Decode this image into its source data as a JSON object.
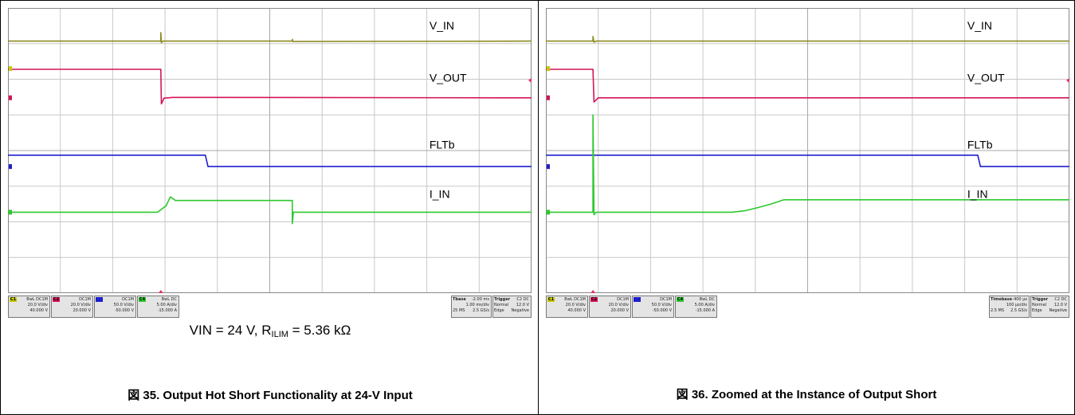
{
  "colors": {
    "v_in": "#8a8a20",
    "v_out": "#d4145a",
    "fltb": "#1f1fcc",
    "i_in": "#2ec82e",
    "grid": "#c8c8c8",
    "ch1": "#c8c800",
    "ch2": "#d4145a",
    "ch3": "#1f1fcc",
    "ch4": "#2ec82e"
  },
  "chart_data": [
    {
      "type": "line",
      "trace_labels": [
        "V_IN",
        "V_OUT",
        "FLTb",
        "I_IN"
      ],
      "channels": [
        {
          "tag": "C1",
          "mode": "BwL DC1M",
          "vdiv": "20.0 V/div",
          "offset": "40.000 V"
        },
        {
          "tag": "C2",
          "mode": "DC1M",
          "vdiv": "20.0 V/div",
          "offset": "20.000 V"
        },
        {
          "tag": "",
          "mode": "DC1M",
          "vdiv": "50.0 V/div",
          "offset": "-50.000 V"
        },
        {
          "tag": "C4",
          "mode": "BwL DC",
          "vdiv": "5.00 A/div",
          "offset": "-15.000 A"
        }
      ],
      "timebase": {
        "label": "Tbase",
        "delay": "-2.00 ms",
        "per_div": "1.00 ms/div",
        "samples": "25 MS",
        "rate": "2.5 GS/s"
      },
      "trigger": {
        "label": "Trigger",
        "source": "C2 DC",
        "mode": "Normal",
        "level": "12.0 V",
        "type": "Edge",
        "slope": "Negative"
      },
      "x_range": [
        0,
        10
      ],
      "y_range": [
        -4,
        4
      ]
    },
    {
      "type": "line",
      "trace_labels": [
        "V_IN",
        "V_OUT",
        "FLTb",
        "I_IN"
      ],
      "channels": [
        {
          "tag": "C1",
          "mode": "BwL DC1M",
          "vdiv": "20.0 V/div",
          "offset": "40.000 V"
        },
        {
          "tag": "C2",
          "mode": "DC1M",
          "vdiv": "20.0 V/div",
          "offset": "20.000 V"
        },
        {
          "tag": "",
          "mode": "DC1M",
          "vdiv": "50.0 V/div",
          "offset": "-50.000 V"
        },
        {
          "tag": "C4",
          "mode": "BwL DC",
          "vdiv": "5.00 A/div",
          "offset": "-15.000 A"
        }
      ],
      "timebase": {
        "label": "Timebase",
        "delay": "-400 µs",
        "per_div": "100 µs/div",
        "samples": "2.5 MS",
        "rate": "2.5 GS/s"
      },
      "trigger": {
        "label": "Trigger",
        "source": "C2 DC",
        "mode": "Normal",
        "level": "12.0 V",
        "type": "Edge",
        "slope": "Negative"
      },
      "x_range": [
        0,
        10
      ],
      "y_range": [
        -4,
        4
      ]
    }
  ],
  "figures": {
    "left_condition": {
      "prefix": "VIN = 24 V, R",
      "sub": "ILIM",
      "suffix": " = 5.36 kΩ"
    },
    "left_caption": "図 35. Output Hot Short Functionality at 24-V Input",
    "right_caption": "図 36. Zoomed at the Instance of Output Short"
  }
}
